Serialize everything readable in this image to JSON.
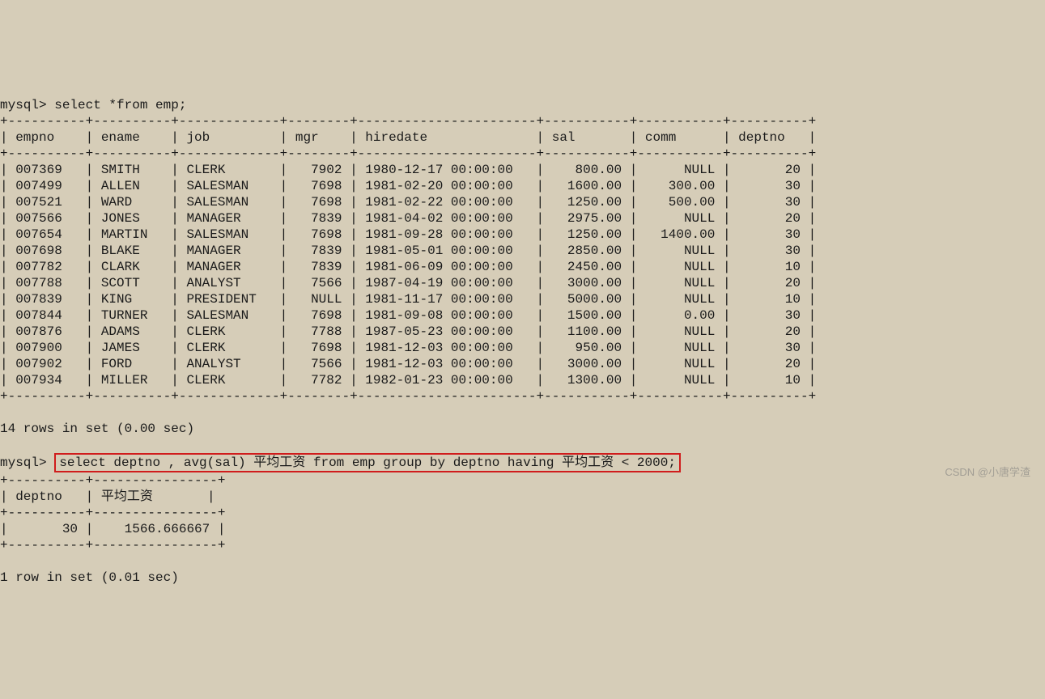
{
  "terminal": {
    "prompt": "mysql>",
    "query1": "select *from emp;",
    "query2": "select deptno , avg(sal) 平均工资 from emp group by deptno having 平均工资 < 2000;",
    "table1_columns": [
      "empno",
      "ename",
      "job",
      "mgr",
      "hiredate",
      "sal",
      "comm",
      "deptno"
    ],
    "table1_rows": [
      [
        "007369",
        "SMITH",
        "CLERK",
        "7902",
        "1980-12-17 00:00:00",
        "800.00",
        "NULL",
        "20"
      ],
      [
        "007499",
        "ALLEN",
        "SALESMAN",
        "7698",
        "1981-02-20 00:00:00",
        "1600.00",
        "300.00",
        "30"
      ],
      [
        "007521",
        "WARD",
        "SALESMAN",
        "7698",
        "1981-02-22 00:00:00",
        "1250.00",
        "500.00",
        "30"
      ],
      [
        "007566",
        "JONES",
        "MANAGER",
        "7839",
        "1981-04-02 00:00:00",
        "2975.00",
        "NULL",
        "20"
      ],
      [
        "007654",
        "MARTIN",
        "SALESMAN",
        "7698",
        "1981-09-28 00:00:00",
        "1250.00",
        "1400.00",
        "30"
      ],
      [
        "007698",
        "BLAKE",
        "MANAGER",
        "7839",
        "1981-05-01 00:00:00",
        "2850.00",
        "NULL",
        "30"
      ],
      [
        "007782",
        "CLARK",
        "MANAGER",
        "7839",
        "1981-06-09 00:00:00",
        "2450.00",
        "NULL",
        "10"
      ],
      [
        "007788",
        "SCOTT",
        "ANALYST",
        "7566",
        "1987-04-19 00:00:00",
        "3000.00",
        "NULL",
        "20"
      ],
      [
        "007839",
        "KING",
        "PRESIDENT",
        "NULL",
        "1981-11-17 00:00:00",
        "5000.00",
        "NULL",
        "10"
      ],
      [
        "007844",
        "TURNER",
        "SALESMAN",
        "7698",
        "1981-09-08 00:00:00",
        "1500.00",
        "0.00",
        "30"
      ],
      [
        "007876",
        "ADAMS",
        "CLERK",
        "7788",
        "1987-05-23 00:00:00",
        "1100.00",
        "NULL",
        "20"
      ],
      [
        "007900",
        "JAMES",
        "CLERK",
        "7698",
        "1981-12-03 00:00:00",
        "950.00",
        "NULL",
        "30"
      ],
      [
        "007902",
        "FORD",
        "ANALYST",
        "7566",
        "1981-12-03 00:00:00",
        "3000.00",
        "NULL",
        "20"
      ],
      [
        "007934",
        "MILLER",
        "CLERK",
        "7782",
        "1982-01-23 00:00:00",
        "1300.00",
        "NULL",
        "10"
      ]
    ],
    "table1_widths": [
      8,
      8,
      11,
      6,
      21,
      9,
      9,
      8
    ],
    "table1_align": [
      "left",
      "left",
      "left",
      "right",
      "left",
      "right",
      "right",
      "right"
    ],
    "result1": "14 rows in set (0.00 sec)",
    "table2_columns": [
      "deptno",
      "平均工资"
    ],
    "table2_rows": [
      [
        "30",
        "1566.666667"
      ]
    ],
    "table2_widths": [
      8,
      14
    ],
    "table2_align": [
      "right",
      "right"
    ],
    "result2": "1 row in set (0.01 sec)",
    "highlight_color": "#d01c1c",
    "background_color": "#d6cdb8",
    "text_color": "#1a1a1a",
    "watermark": "CSDN @小唐学渣"
  }
}
